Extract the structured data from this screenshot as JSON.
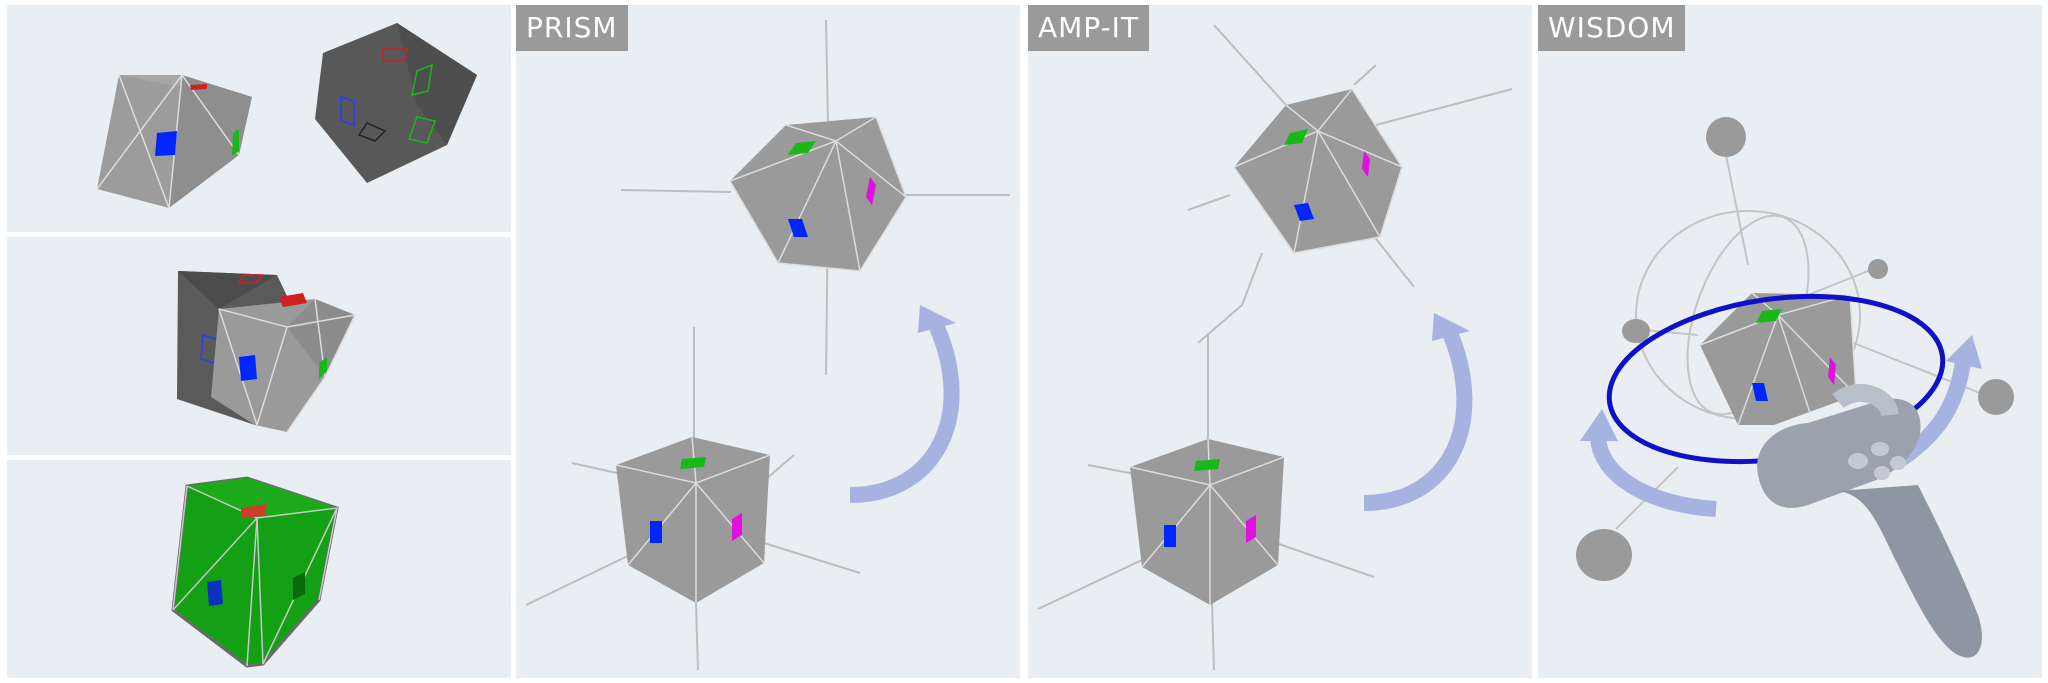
{
  "panels": {
    "prism": {
      "label": "PRISM"
    },
    "amp_it": {
      "label": "AMP-IT"
    },
    "wisdom": {
      "label": "WISDOM"
    }
  },
  "colors": {
    "background": "#e8eef1",
    "cube_face": "#9a9a9a",
    "cube_dark": "#585858",
    "cube_green": "#14a014",
    "marker_blue": "#0026ff",
    "marker_green": "#18b818",
    "marker_magenta": "#e010e0",
    "marker_red": "#d02020",
    "arrow": "#a6b3e0",
    "ring": "#1010c8"
  },
  "icons": [
    "rotation-arrow-icon",
    "vr-controller-icon",
    "rotation-ring-icon"
  ]
}
